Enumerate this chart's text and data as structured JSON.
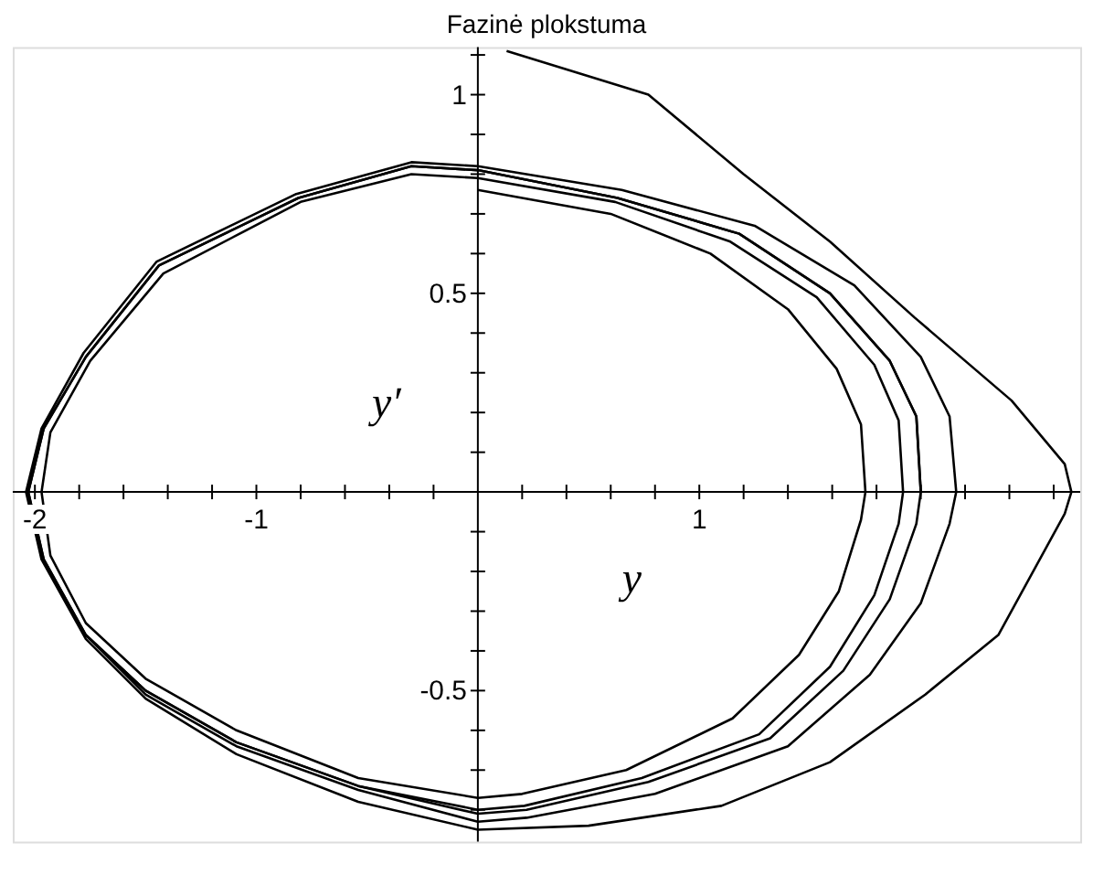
{
  "chart_data": {
    "type": "line",
    "title": "Fazinė plokstuma",
    "xlabel": "y",
    "ylabel": "y′",
    "xlim": [
      -2.1,
      2.72
    ],
    "ylim": [
      -0.88,
      1.12
    ],
    "xticks": [
      -2,
      {
        "value": -1.8,
        "label": null
      },
      {
        "value": -1.6,
        "label": null
      },
      {
        "value": -1.4,
        "label": null
      },
      {
        "value": -1.2,
        "label": null
      },
      -1,
      {
        "value": -0.8,
        "label": null
      },
      {
        "value": -0.6,
        "label": null
      },
      {
        "value": -0.4,
        "label": null
      },
      {
        "value": -0.2,
        "label": null
      },
      {
        "value": 0.2,
        "label": null
      },
      {
        "value": 0.4,
        "label": null
      },
      {
        "value": 0.6,
        "label": null
      },
      {
        "value": 0.8,
        "label": null
      },
      1,
      {
        "value": 1.2,
        "label": null
      },
      {
        "value": 1.4,
        "label": null
      },
      {
        "value": 1.6,
        "label": null
      },
      {
        "value": 1.8,
        "label": null
      },
      {
        "value": 2,
        "label": null
      },
      {
        "value": 2.2,
        "label": null
      },
      {
        "value": 2.4,
        "label": null
      },
      {
        "value": 2.6,
        "label": null
      }
    ],
    "yticks": [
      {
        "value": -0.8,
        "label": null
      },
      {
        "value": -0.7,
        "label": null
      },
      {
        "value": -0.6,
        "label": null
      },
      -0.5,
      {
        "value": -0.4,
        "label": null
      },
      {
        "value": -0.3,
        "label": null
      },
      {
        "value": -0.2,
        "label": null
      },
      {
        "value": -0.1,
        "label": null
      },
      {
        "value": 0.1,
        "label": null
      },
      {
        "value": 0.2,
        "label": null
      },
      {
        "value": 0.3,
        "label": null
      },
      {
        "value": 0.4,
        "label": null
      },
      0.5,
      {
        "value": 0.6,
        "label": null
      },
      {
        "value": 0.7,
        "label": null
      },
      {
        "value": 0.8,
        "label": null
      },
      {
        "value": 0.9,
        "label": null
      },
      1,
      {
        "value": 1.1,
        "label": null
      }
    ],
    "grid": false,
    "marker": "none",
    "line_style": "solid",
    "series": [
      {
        "color": "#000000",
        "x": [
          0.13,
          0.77,
          1.2,
          1.59,
          1.97,
          2.41,
          2.65,
          2.68,
          2.65,
          2.35,
          2.02,
          1.59,
          1.1,
          0.5,
          0,
          -0.54,
          -1.09,
          -1.5,
          -1.77,
          -1.97,
          -2.04,
          -1.97,
          -1.78,
          -1.45,
          -0.82,
          -0.3,
          0,
          0.65,
          1.25,
          1.7,
          2.0,
          2.13,
          2.16,
          2.13,
          2.0,
          1.77,
          1.4,
          0.8,
          0.22,
          0,
          -0.54,
          -1.09,
          -1.5,
          -1.77,
          -1.96,
          -2.03,
          -1.96,
          -1.77,
          -1.44,
          -0.81,
          -0.3,
          0,
          0.63,
          1.18,
          1.59,
          1.86,
          1.98,
          2.0,
          1.98,
          1.86,
          1.65,
          1.32,
          0.77,
          0.22,
          0,
          -0.54,
          -1.09,
          -1.5,
          -1.77,
          -1.96,
          -2.03,
          -1.96,
          -1.77,
          -1.44,
          -0.81,
          -0.3,
          0,
          0.63,
          1.18,
          1.59,
          1.86,
          1.98,
          2.0,
          1.98,
          1.86,
          1.65,
          1.32,
          0.77,
          0.22,
          0
        ],
        "values": [
          1.11,
          1.0,
          0.8,
          0.63,
          0.44,
          0.23,
          0.07,
          0,
          -0.055,
          -0.36,
          -0.51,
          -0.68,
          -0.79,
          -0.84,
          -0.85,
          -0.78,
          -0.66,
          -0.52,
          -0.37,
          -0.17,
          0,
          0.16,
          0.35,
          0.58,
          0.75,
          0.83,
          0.82,
          0.76,
          0.67,
          0.52,
          0.34,
          0.19,
          0,
          -0.08,
          -0.28,
          -0.46,
          -0.64,
          -0.76,
          -0.82,
          -0.83,
          -0.75,
          -0.64,
          -0.51,
          -0.36,
          -0.17,
          0,
          0.16,
          0.34,
          0.57,
          0.74,
          0.82,
          0.81,
          0.74,
          0.65,
          0.5,
          0.33,
          0.19,
          0,
          -0.08,
          -0.27,
          -0.45,
          -0.62,
          -0.73,
          -0.8,
          -0.81,
          -0.74,
          -0.63,
          -0.5,
          -0.36,
          -0.17,
          0,
          0.16,
          0.34,
          0.57,
          0.74,
          0.82,
          0.81,
          0.74,
          0.65,
          0.5,
          0.33,
          0.19,
          0,
          -0.08,
          -0.27,
          -0.45,
          -0.62,
          -0.73,
          -0.8,
          -0.81
        ]
      },
      {
        "color": "#000000",
        "x": [
          0,
          0.6,
          1.05,
          1.4,
          1.62,
          1.73,
          1.75,
          1.73,
          1.63,
          1.45,
          1.15,
          0.67,
          0.2,
          0,
          -0.54,
          -1.09,
          -1.5,
          -1.77,
          -1.93,
          -1.97,
          -1.93,
          -1.75,
          -1.42,
          -0.8,
          -0.3,
          0,
          0.62,
          1.14,
          1.53,
          1.79,
          1.9,
          1.92,
          1.9,
          1.79,
          1.59,
          1.27,
          0.74,
          0.21,
          0,
          -0.54,
          -1.09,
          -1.5,
          -1.77,
          -1.96,
          -2.03,
          -1.96,
          -1.77,
          -1.44,
          -0.81,
          -0.3,
          0,
          0.63,
          1.18,
          1.59,
          1.86,
          1.98,
          2.0
        ],
        "values": [
          0.76,
          0.7,
          0.6,
          0.46,
          0.31,
          0.17,
          0,
          -0.07,
          -0.25,
          -0.41,
          -0.57,
          -0.7,
          -0.76,
          -0.77,
          -0.72,
          -0.6,
          -0.47,
          -0.33,
          -0.16,
          0,
          0.15,
          0.33,
          0.55,
          0.73,
          0.8,
          0.79,
          0.73,
          0.63,
          0.49,
          0.32,
          0.18,
          0,
          -0.08,
          -0.26,
          -0.44,
          -0.61,
          -0.72,
          -0.79,
          -0.8,
          -0.74,
          -0.63,
          -0.5,
          -0.36,
          -0.17,
          0,
          0.16,
          0.34,
          0.57,
          0.74,
          0.82,
          0.81,
          0.74,
          0.65,
          0.5,
          0.33,
          0.19,
          0
        ]
      }
    ]
  }
}
